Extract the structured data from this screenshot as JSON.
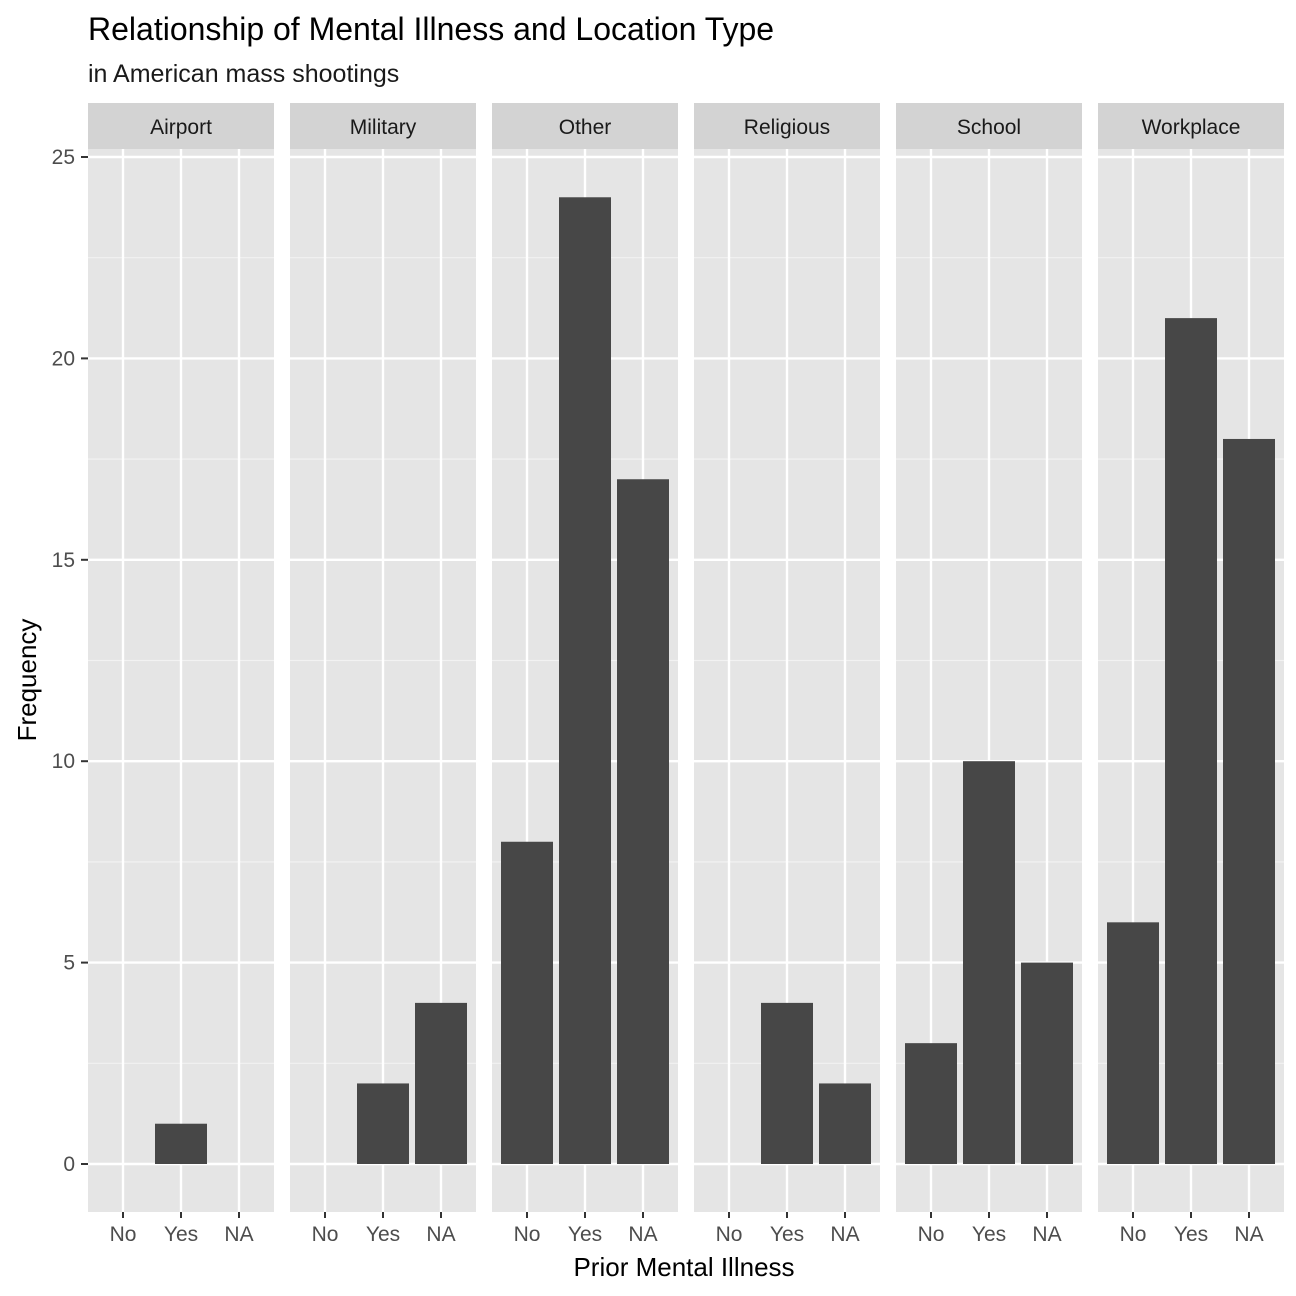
{
  "chart_data": {
    "type": "bar",
    "title": "Relationship of Mental Illness and Location Type",
    "subtitle": "in American mass shootings",
    "xlabel": "Prior Mental Illness",
    "ylabel": "Frequency",
    "ylim": [
      0,
      25
    ],
    "yticks": [
      0,
      5,
      10,
      15,
      20,
      25
    ],
    "categories": [
      "No",
      "Yes",
      "NA"
    ],
    "grid": true,
    "bar_color": "#474747",
    "panel_background": "#e5e5e5",
    "strip_background": "#d3d3d3",
    "facets": [
      {
        "name": "Airport",
        "values": [
          0,
          1,
          0
        ]
      },
      {
        "name": "Military",
        "values": [
          0,
          2,
          4
        ]
      },
      {
        "name": "Other",
        "values": [
          8,
          24,
          17
        ]
      },
      {
        "name": "Religious",
        "values": [
          0,
          4,
          2
        ]
      },
      {
        "name": "School",
        "values": [
          3,
          10,
          5
        ]
      },
      {
        "name": "Workplace",
        "values": [
          6,
          21,
          18
        ]
      }
    ]
  }
}
